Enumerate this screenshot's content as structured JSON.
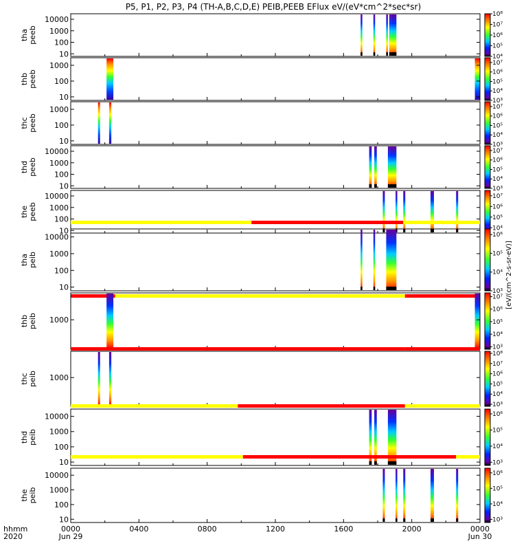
{
  "title": "P5, P1, P2, P3, P4 (TH-A,B,C,D,E) PEIB,PEEB EFlux eV/(eV*cm^2*sec*sr)",
  "x_axis": {
    "ticks": [
      "0000",
      "0400",
      "0800",
      "1200",
      "1600",
      "2000",
      "0000"
    ],
    "dates": [
      "Jun 29",
      "Jun 30"
    ],
    "row_label": "hhmm",
    "year_label": "2020"
  },
  "colorbar_unit_label": "[eV/(cm^2-s-sr-eV)]",
  "colors": {
    "bar_on": "#ff0000",
    "bar_off": "#ffff00",
    "fill_marker": "#000000"
  },
  "chart_data": [
    {
      "type": "heatmap",
      "probe": "tha",
      "label": [
        "tha",
        "peeb"
      ],
      "yticks": [
        "10",
        "100",
        "1000",
        "10000"
      ],
      "ylim": [
        6,
        30000
      ],
      "ylog": true,
      "cbar": [
        "10^4",
        "10^5",
        "10^6",
        "10^7",
        "10^8"
      ],
      "cbar_range": [
        4,
        8
      ],
      "segments": [
        [
          17.0,
          17.08
        ],
        [
          17.75,
          17.85
        ],
        [
          18.5,
          18.6
        ],
        [
          18.68,
          18.8
        ],
        [
          18.8,
          19.1
        ]
      ]
    },
    {
      "type": "heatmap",
      "probe": "thb",
      "label": [
        "thb",
        "peeb"
      ],
      "yticks": [
        "10",
        "100",
        "1000"
      ],
      "ylim": [
        6,
        3000
      ],
      "ylog": true,
      "cbar": [
        "10^3",
        "10^4",
        "10^5",
        "10^6",
        "10^7"
      ],
      "cbar_range": [
        3,
        7.5
      ],
      "segments": [
        [
          2.1,
          2.5
        ],
        [
          23.7,
          24.0
        ]
      ]
    },
    {
      "type": "heatmap",
      "probe": "thc",
      "label": [
        "thc",
        "peeb"
      ],
      "yticks": [
        "10",
        "100",
        "1000"
      ],
      "ylim": [
        6,
        3000
      ],
      "ylog": true,
      "cbar": [
        "10^3",
        "10^4",
        "10^5",
        "10^6",
        "10^7"
      ],
      "cbar_range": [
        3,
        7.5
      ],
      "segments": [
        [
          1.6,
          1.72
        ],
        [
          2.25,
          2.38
        ]
      ]
    },
    {
      "type": "heatmap",
      "probe": "thd",
      "label": [
        "thd",
        "peeb"
      ],
      "yticks": [
        "10",
        "100",
        "1000",
        "10000"
      ],
      "ylim": [
        6,
        30000
      ],
      "ylog": true,
      "cbar": [
        "10^3",
        "10^4",
        "10^5",
        "10^6",
        "10^7"
      ],
      "cbar_range": [
        3,
        7.5
      ],
      "segments": [
        [
          17.5,
          17.65
        ],
        [
          17.8,
          17.95
        ],
        [
          18.6,
          18.7
        ],
        [
          18.7,
          19.1
        ]
      ]
    },
    {
      "type": "heatmap",
      "probe": "the",
      "label": [
        "the",
        "peeb"
      ],
      "yticks": [
        "10",
        "100",
        "1000",
        "10000"
      ],
      "ylim": [
        6,
        30000
      ],
      "ylog": true,
      "cbar": [
        "10^4",
        "10^5",
        "10^6",
        "10^7"
      ],
      "cbar_range": [
        3.5,
        7.5
      ],
      "segments": [
        [
          18.3,
          18.42
        ],
        [
          19.05,
          19.15
        ],
        [
          19.5,
          19.62
        ],
        [
          21.1,
          21.3
        ],
        [
          22.6,
          22.72
        ]
      ]
    },
    {
      "type": "heatmap",
      "probe": "tha",
      "label": [
        "tha",
        "peib"
      ],
      "yticks": [
        "10",
        "100",
        "1000",
        "10000"
      ],
      "ylim": [
        6,
        30000
      ],
      "ylog": true,
      "cbar": [
        "10^3",
        "10^4",
        "10^5",
        "10^6"
      ],
      "cbar_range": [
        3,
        6.3
      ],
      "state_bar": [
        {
          "from": 0,
          "to": 10.6,
          "state": "off"
        },
        {
          "from": 10.6,
          "to": 19.5,
          "state": "on"
        },
        {
          "from": 19.5,
          "to": 24,
          "state": "off"
        }
      ],
      "segments": [
        [
          17.0,
          17.08
        ],
        [
          17.75,
          17.85
        ],
        [
          18.5,
          19.1
        ]
      ]
    },
    {
      "type": "heatmap",
      "probe": "thb",
      "label": [
        "thb",
        "peib"
      ],
      "yticks": [
        "1000"
      ],
      "ylim": [
        300,
        3000
      ],
      "ylog": true,
      "cbar": [
        "10^3",
        "10^4",
        "10^5",
        "10^6",
        "10^7"
      ],
      "cbar_range": [
        2.8,
        7.3
      ],
      "state_bar": [
        {
          "from": 0,
          "to": 2.6,
          "state": "on"
        },
        {
          "from": 2.6,
          "to": 19.6,
          "state": "off"
        },
        {
          "from": 19.6,
          "to": 24,
          "state": "on"
        }
      ],
      "segments": [
        [
          2.1,
          2.5
        ],
        [
          23.7,
          24.0
        ]
      ]
    },
    {
      "type": "heatmap",
      "probe": "thc",
      "label": [
        "thc",
        "peib"
      ],
      "yticks": [
        "1000"
      ],
      "ylim": [
        300,
        3000
      ],
      "ylog": true,
      "cbar": [
        "10^3",
        "10^4",
        "10^5",
        "10^6",
        "10^7",
        "10^8"
      ],
      "cbar_range": [
        2.8,
        8.2
      ],
      "state_bar": [
        {
          "from": 0,
          "to": 19.6,
          "state": "on"
        },
        {
          "from": 19.6,
          "to": 24,
          "state": "on"
        }
      ],
      "segments": [
        [
          1.6,
          1.72
        ],
        [
          2.25,
          2.38
        ]
      ]
    },
    {
      "type": "heatmap",
      "probe": "thd",
      "label": [
        "thd",
        "peib"
      ],
      "yticks": [
        "10",
        "100",
        "1000",
        "10000"
      ],
      "ylim": [
        6,
        30000
      ],
      "ylog": true,
      "cbar": [
        "10^3",
        "10^4",
        "10^5",
        "10^6"
      ],
      "cbar_range": [
        2.8,
        6.3
      ],
      "state_bar": [
        {
          "from": 0,
          "to": 9.8,
          "state": "off"
        },
        {
          "from": 9.8,
          "to": 19.6,
          "state": "on"
        },
        {
          "from": 19.6,
          "to": 24,
          "state": "off"
        }
      ],
      "segments": [
        [
          17.5,
          17.65
        ],
        [
          17.8,
          17.95
        ],
        [
          18.6,
          19.1
        ]
      ]
    },
    {
      "type": "heatmap",
      "probe": "the",
      "label": [
        "the",
        "peib"
      ],
      "yticks": [
        "10",
        "100",
        "1000",
        "10000"
      ],
      "ylim": [
        6,
        30000
      ],
      "ylog": true,
      "cbar": [
        "10^3",
        "10^4",
        "10^5",
        "10^6"
      ],
      "cbar_range": [
        2.8,
        6.3
      ],
      "state_bar": [
        {
          "from": 0,
          "to": 10.1,
          "state": "off"
        },
        {
          "from": 10.1,
          "to": 22.6,
          "state": "on"
        },
        {
          "from": 22.6,
          "to": 24,
          "state": "off"
        }
      ],
      "segments": [
        [
          18.3,
          18.42
        ],
        [
          19.05,
          19.15
        ],
        [
          19.5,
          19.62
        ],
        [
          21.1,
          21.3
        ],
        [
          22.6,
          22.72
        ]
      ]
    }
  ]
}
